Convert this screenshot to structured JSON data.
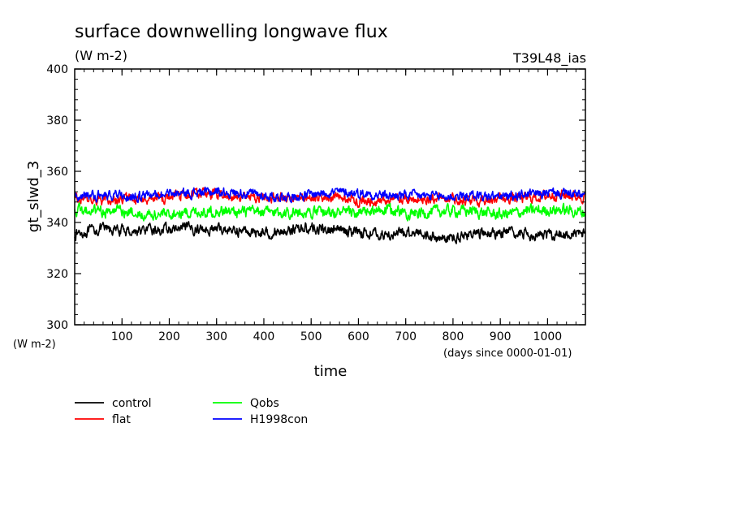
{
  "chart_data": {
    "type": "line",
    "title": "surface downwelling longwave flux",
    "units": "(W m-2)",
    "run_label": "T39L48_ias",
    "ylabel": "gt_slwd_3",
    "xlabel": "time",
    "x_units": "(days since 0000-01-01)",
    "y_units": "(W m-2)",
    "xlim": [
      0,
      1080
    ],
    "ylim": [
      300,
      400
    ],
    "x_ticks": [
      100,
      200,
      300,
      400,
      500,
      600,
      700,
      800,
      900,
      1000
    ],
    "y_ticks": [
      300,
      320,
      340,
      360,
      380,
      400
    ],
    "x_minor_step": 20,
    "y_minor_step": 4,
    "grid": false,
    "legend_position": "bottom-left",
    "series": [
      {
        "name": "control",
        "color": "#000000",
        "x": [
          0,
          60,
          120,
          180,
          240,
          300,
          360,
          420,
          480,
          540,
          600,
          660,
          720,
          780,
          840,
          900,
          960,
          1020,
          1080
        ],
        "values": [
          335.5,
          337.5,
          336.5,
          337,
          337.5,
          337.5,
          336.5,
          336,
          338,
          337,
          336.5,
          335,
          336.5,
          333.5,
          335.5,
          336,
          335.5,
          335,
          336
        ],
        "noise": 1.6
      },
      {
        "name": "flat",
        "color": "#ff0000",
        "x": [
          0,
          60,
          120,
          180,
          240,
          300,
          360,
          420,
          480,
          540,
          600,
          660,
          720,
          780,
          840,
          900,
          960,
          1020,
          1080
        ],
        "values": [
          350,
          348.5,
          349,
          349.5,
          351,
          351,
          350,
          349.5,
          349.5,
          350,
          348.5,
          349,
          349,
          350,
          348.5,
          349.5,
          349.5,
          351,
          350
        ],
        "noise": 1.6
      },
      {
        "name": "Qobs",
        "color": "#00ff00",
        "x": [
          0,
          60,
          120,
          180,
          240,
          300,
          360,
          420,
          480,
          540,
          600,
          660,
          720,
          780,
          840,
          900,
          960,
          1020,
          1080
        ],
        "values": [
          344.5,
          344.5,
          344,
          343,
          344,
          344.5,
          344,
          344,
          344,
          344,
          343.5,
          345,
          343.5,
          344.5,
          344.5,
          343,
          344.5,
          345,
          344
        ],
        "noise": 1.8
      },
      {
        "name": "H1998con",
        "color": "#0000ff",
        "x": [
          0,
          60,
          120,
          180,
          240,
          300,
          360,
          420,
          480,
          540,
          600,
          660,
          720,
          780,
          840,
          900,
          960,
          1020,
          1080
        ],
        "values": [
          350.5,
          350.5,
          350,
          351,
          351.5,
          352,
          351.5,
          350,
          350.5,
          352,
          351.5,
          350.5,
          350.5,
          350,
          350.5,
          350,
          351,
          351.5,
          350.5
        ],
        "noise": 1.5
      }
    ]
  }
}
